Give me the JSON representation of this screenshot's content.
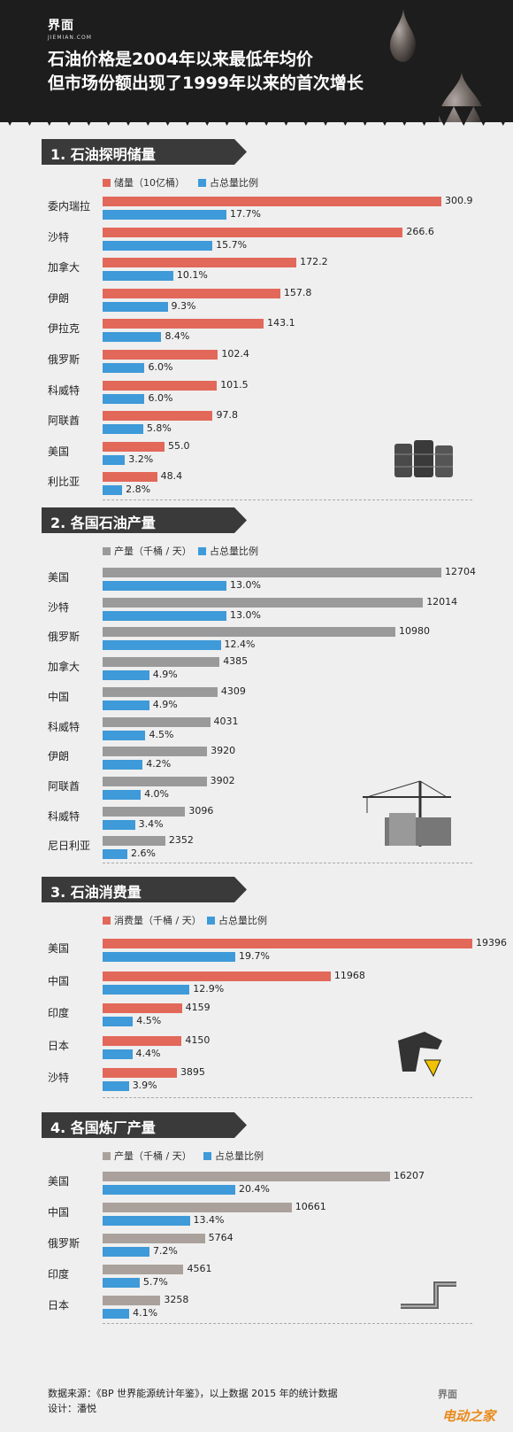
{
  "header": {
    "logo": "界面",
    "logo_sub": "JIEMIAN.COM",
    "title_line1": "石油价格是2004年以来最低年均价",
    "title_line2": "但市场份额出现了1999年以来的首次增长"
  },
  "colors": {
    "red": "#e2685a",
    "blue": "#3e9ad8",
    "gray": "#9a9a9a",
    "taupe": "#aaa19c",
    "dark": "#3a3a3a"
  },
  "chart_data": [
    {
      "type": "bar",
      "title": "1. 石油探明储量",
      "categories": [
        "委内瑞拉",
        "沙特",
        "加拿大",
        "伊朗",
        "伊拉克",
        "俄罗斯",
        "科威特",
        "阿联酋",
        "美国",
        "利比亚"
      ],
      "series": [
        {
          "name": "储量（10亿桶）",
          "values": [
            300.9,
            266.6,
            172.2,
            157.8,
            143.1,
            102.4,
            101.5,
            97.8,
            55.0,
            48.4
          ],
          "labels": [
            "300.9",
            "266.6",
            "172.2",
            "157.8",
            "143.1",
            "102.4",
            "101.5",
            "97.8",
            "55.0",
            "48.4"
          ]
        },
        {
          "name": "占总量比例",
          "values": [
            17.7,
            15.7,
            10.1,
            9.3,
            8.4,
            6.0,
            6.0,
            5.8,
            3.2,
            2.8
          ],
          "labels": [
            "17.7%",
            "15.7%",
            "10.1%",
            "9.3%",
            "8.4%",
            "6.0%",
            "6.0%",
            "5.8%",
            "3.2%",
            "2.8%"
          ]
        }
      ]
    },
    {
      "type": "bar",
      "title": "2. 各国石油产量",
      "categories": [
        "美国",
        "沙特",
        "俄罗斯",
        "加拿大",
        "中国",
        "科威特",
        "伊朗",
        "阿联酋",
        "科威特",
        "尼日利亚"
      ],
      "series": [
        {
          "name": "产量（千桶 / 天）",
          "values": [
            12704,
            12014,
            10980,
            4385,
            4309,
            4031,
            3920,
            3902,
            3096,
            2352
          ],
          "labels": [
            "12704",
            "12014",
            "10980",
            "4385",
            "4309",
            "4031",
            "3920",
            "3902",
            "3096",
            "2352"
          ]
        },
        {
          "name": "占总量比例",
          "values": [
            13.0,
            13.0,
            12.4,
            4.9,
            4.9,
            4.5,
            4.2,
            4.0,
            3.4,
            2.6
          ],
          "labels": [
            "13.0%",
            "13.0%",
            "12.4%",
            "4.9%",
            "4.9%",
            "4.5%",
            "4.2%",
            "4.0%",
            "3.4%",
            "2.6%"
          ]
        }
      ]
    },
    {
      "type": "bar",
      "title": "3. 石油消费量",
      "categories": [
        "美国",
        "中国",
        "印度",
        "日本",
        "沙特"
      ],
      "series": [
        {
          "name": "消费量（千桶 / 天）",
          "values": [
            19396,
            11968,
            4159,
            4150,
            3895
          ],
          "labels": [
            "19396",
            "11968",
            "4159",
            "4150",
            "3895"
          ]
        },
        {
          "name": "占总量比例",
          "values": [
            19.7,
            12.9,
            4.5,
            4.4,
            3.9
          ],
          "labels": [
            "19.7%",
            "12.9%",
            "4.5%",
            "4.4%",
            "3.9%"
          ]
        }
      ]
    },
    {
      "type": "bar",
      "title": "4. 各国炼厂产量",
      "categories": [
        "美国",
        "中国",
        "俄罗斯",
        "印度",
        "日本"
      ],
      "series": [
        {
          "name": "产量（千桶 / 天）",
          "values": [
            16207,
            10661,
            5764,
            4561,
            3258
          ],
          "labels": [
            "16207",
            "10661",
            "5764",
            "4561",
            "3258"
          ]
        },
        {
          "name": "占总量比例",
          "values": [
            20.4,
            13.4,
            7.2,
            5.7,
            4.1
          ],
          "labels": [
            "20.4%",
            "13.4%",
            "7.2%",
            "5.7%",
            "4.1%"
          ]
        }
      ]
    }
  ],
  "footer": {
    "source": "数据来源：《BP 世界能源统计年鉴》，以上数据 2015 年的统计数据",
    "designer": "设计：潘悦",
    "logo": "界面",
    "site": "电动之家"
  }
}
